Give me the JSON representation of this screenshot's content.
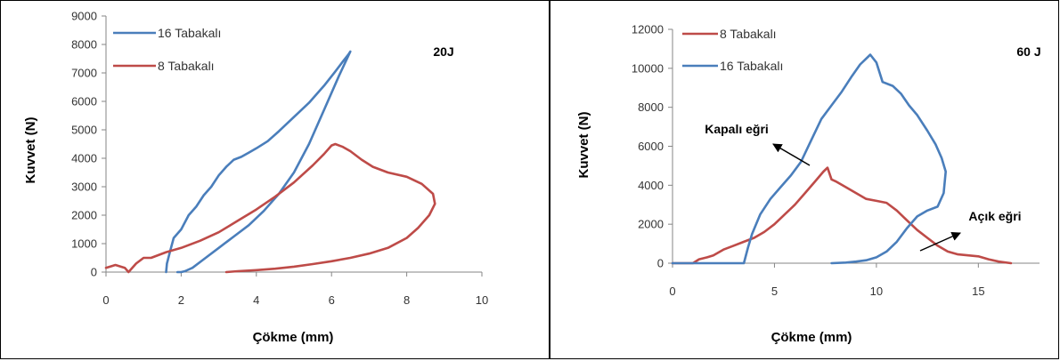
{
  "colors": {
    "blue": "#4a7ebb",
    "red": "#be4b48",
    "axis": "#868686"
  },
  "chart_data": [
    {
      "type": "line",
      "title": "",
      "xlabel": "Çökme (mm)",
      "ylabel": "Kuvvet (N)",
      "xlim": [
        0,
        10
      ],
      "ylim": [
        0,
        9000
      ],
      "xticks": [
        "0",
        "2",
        "4",
        "6",
        "8",
        "10"
      ],
      "yticks": [
        "0",
        "1000",
        "2000",
        "3000",
        "4000",
        "5000",
        "6000",
        "7000",
        "8000",
        "9000"
      ],
      "grid": false,
      "legend_position": "top-left",
      "annotations": [
        {
          "text": "20J",
          "x": 8.9,
          "y": 7800
        }
      ],
      "series": [
        {
          "name": "16 Tabakalı",
          "color": "#4a7ebb",
          "x": [
            1.6,
            1.62,
            1.7,
            1.8,
            2.0,
            2.2,
            2.4,
            2.6,
            2.8,
            3.0,
            3.2,
            3.4,
            3.6,
            3.8,
            4.0,
            4.3,
            4.6,
            5.0,
            5.4,
            5.8,
            6.1,
            6.3,
            6.45,
            6.5,
            6.2,
            5.8,
            5.4,
            5.0,
            4.6,
            4.2,
            3.8,
            3.4,
            3.0,
            2.6,
            2.3,
            2.1,
            2.0,
            1.9
          ],
          "y": [
            0,
            300,
            700,
            1200,
            1500,
            2000,
            2300,
            2700,
            3000,
            3400,
            3700,
            3950,
            4050,
            4200,
            4350,
            4600,
            4950,
            5450,
            5950,
            6550,
            7050,
            7400,
            7650,
            7750,
            6900,
            5700,
            4500,
            3500,
            2750,
            2150,
            1650,
            1250,
            850,
            450,
            150,
            30,
            0,
            0
          ]
        },
        {
          "name": "8 Tabakalı",
          "color": "#be4b48",
          "x": [
            0.0,
            0.25,
            0.5,
            0.6,
            0.8,
            1.0,
            1.2,
            1.6,
            2.0,
            2.5,
            3.0,
            3.5,
            4.0,
            4.5,
            5.0,
            5.5,
            5.8,
            6.0,
            6.1,
            6.3,
            6.5,
            6.8,
            7.1,
            7.5,
            8.0,
            8.4,
            8.7,
            8.75,
            8.6,
            8.3,
            8.0,
            7.5,
            7.0,
            6.5,
            6.0,
            5.5,
            5.0,
            4.5,
            4.0,
            3.5,
            3.2
          ],
          "y": [
            150,
            250,
            150,
            0,
            300,
            500,
            500,
            700,
            850,
            1100,
            1400,
            1800,
            2200,
            2650,
            3150,
            3750,
            4150,
            4450,
            4500,
            4400,
            4250,
            3950,
            3700,
            3500,
            3350,
            3100,
            2750,
            2400,
            2000,
            1550,
            1200,
            850,
            650,
            500,
            380,
            280,
            190,
            120,
            70,
            30,
            0
          ]
        }
      ]
    },
    {
      "type": "line",
      "title": "",
      "xlabel": "Çökme (mm)",
      "ylabel": "Kuvvet (N)",
      "xlim": [
        0,
        18
      ],
      "ylim": [
        0,
        12000
      ],
      "xticks": [
        "0",
        "5",
        "10",
        "15"
      ],
      "yticks": [
        "0",
        "2000",
        "4000",
        "6000",
        "8000",
        "10000",
        "12000"
      ],
      "grid": false,
      "legend_position": "top-left",
      "annotations": [
        {
          "text": "60 J",
          "x": 16.8,
          "y": 10400
        },
        {
          "text": "Kapalı eğri",
          "x": 3.9,
          "y": 6400
        },
        {
          "text": "Açık eğri",
          "x": 16.6,
          "y": 2200
        }
      ],
      "series": [
        {
          "name": "8 Tabakalı",
          "color": "#be4b48",
          "x": [
            0.0,
            1.0,
            1.3,
            1.7,
            2.0,
            2.5,
            3.0,
            3.5,
            4.0,
            4.5,
            5.0,
            5.5,
            6.0,
            6.5,
            7.0,
            7.4,
            7.6,
            7.8,
            8.0,
            8.5,
            9.0,
            9.5,
            10.0,
            10.5,
            11.0,
            11.5,
            12.0,
            12.5,
            13.0,
            13.5,
            14.0,
            14.5,
            15.0,
            15.5,
            16.0,
            16.6
          ],
          "y": [
            0,
            0,
            200,
            300,
            400,
            700,
            900,
            1100,
            1300,
            1600,
            2000,
            2500,
            3000,
            3600,
            4200,
            4700,
            4900,
            4300,
            4200,
            3900,
            3600,
            3300,
            3200,
            3100,
            2700,
            2200,
            1700,
            1300,
            900,
            600,
            450,
            400,
            350,
            200,
            80,
            0
          ]
        },
        {
          "name": "16 Tabakalı",
          "color": "#4a7ebb",
          "x": [
            0.0,
            3.5,
            3.7,
            3.9,
            4.3,
            4.8,
            5.3,
            5.8,
            6.3,
            6.8,
            7.3,
            7.8,
            8.3,
            8.8,
            9.2,
            9.5,
            9.7,
            10.0,
            10.3,
            10.8,
            11.2,
            11.6,
            12.0,
            12.5,
            12.9,
            13.2,
            13.4,
            13.3,
            13.0,
            12.5,
            12.0,
            11.5,
            11.0,
            10.5,
            10.0,
            9.5,
            9.0,
            8.5,
            7.8
          ],
          "y": [
            0,
            0,
            800,
            1500,
            2500,
            3300,
            3900,
            4500,
            5200,
            6300,
            7400,
            8100,
            8800,
            9600,
            10200,
            10500,
            10700,
            10300,
            9300,
            9100,
            8700,
            8100,
            7600,
            6800,
            6100,
            5400,
            4700,
            3600,
            2900,
            2700,
            2400,
            1800,
            1100,
            600,
            300,
            150,
            80,
            30,
            0
          ]
        }
      ]
    }
  ]
}
